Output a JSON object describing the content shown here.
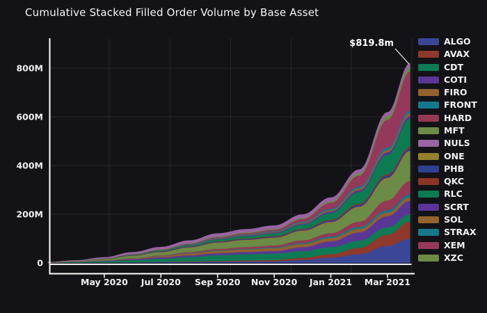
{
  "title": "Cumulative Stacked Filled Order Volume by Base Asset",
  "colors": {
    "background": "#131317",
    "axis_line": "#ffffff",
    "zero_line": "#f0ecf6",
    "grid_horizontal": "#27272e",
    "grid_vertical": "#24242b",
    "tick_text": "#f0f0f0",
    "annotation_text": "#ffffff",
    "annotation_arrow": "#e8e8e8"
  },
  "chart_data": {
    "type": "area",
    "stacked": true,
    "title": "Cumulative Stacked Filled Order Volume by Base Asset",
    "xlabel": "",
    "ylabel": "",
    "ylim": [
      0,
      905
    ],
    "y_ticks": [
      {
        "label": "0",
        "value": 0
      },
      {
        "label": "200M",
        "value": 200
      },
      {
        "label": "400M",
        "value": 400
      },
      {
        "label": "600M",
        "value": 600
      },
      {
        "label": "800M",
        "value": 800
      }
    ],
    "x_ticks": [
      {
        "label": "May 2020",
        "offset": 2
      },
      {
        "label": "Jul 2020",
        "offset": 4
      },
      {
        "label": "Sep 2020",
        "offset": 6
      },
      {
        "label": "Nov 2020",
        "offset": 8
      },
      {
        "label": "Jan 2021",
        "offset": 10
      },
      {
        "label": "Mar 2021",
        "offset": 12
      }
    ],
    "x_offsets": [
      0,
      1,
      2,
      3,
      4,
      5,
      6,
      7,
      8,
      9,
      10,
      11,
      12,
      12.8
    ],
    "legend_position": "right",
    "grid": true,
    "annotation": {
      "text": "$819.8m",
      "value": 819.8
    },
    "stack_order": [
      "ALGO",
      "AVAX",
      "CDT",
      "COTI",
      "FIRO",
      "FRONT",
      "HARD",
      "MFT",
      "ONE",
      "PHB",
      "QKC",
      "RLC",
      "SCRT",
      "SOL",
      "STRAX",
      "XEM",
      "XZC",
      "NULS"
    ],
    "series": [
      {
        "name": "ALGO",
        "color": "#3b4796",
        "values": [
          0.2,
          0.6,
          1.2,
          2,
          3,
          4,
          5,
          6,
          7,
          12,
          22,
          36,
          70,
          100
        ]
      },
      {
        "name": "AVAX",
        "color": "#8e392c",
        "values": [
          0,
          0.1,
          0.3,
          0.6,
          1,
          2,
          3,
          4,
          5,
          9,
          14,
          26,
          46,
          70
        ]
      },
      {
        "name": "CDT",
        "color": "#0e7b55",
        "values": [
          0.8,
          2.5,
          5,
          9,
          13,
          18,
          24,
          26,
          27,
          28,
          29,
          29.5,
          30,
          30
        ]
      },
      {
        "name": "COTI",
        "color": "#5a3795",
        "values": [
          0.3,
          1,
          2,
          4,
          6,
          7,
          8,
          9,
          10,
          16,
          24,
          34,
          46,
          55
        ]
      },
      {
        "name": "FIRO",
        "color": "#93612e",
        "values": [
          0.2,
          0.8,
          1.5,
          3,
          5,
          8,
          10,
          11,
          12,
          13,
          13.5,
          14,
          15,
          15
        ]
      },
      {
        "name": "FRONT",
        "color": "#16778c",
        "values": [
          0,
          0,
          0,
          0.5,
          1,
          1.5,
          2,
          2.5,
          3,
          4,
          6,
          8,
          10,
          12
        ]
      },
      {
        "name": "HARD",
        "color": "#943a55",
        "values": [
          0,
          0,
          0.5,
          1,
          2,
          4,
          6,
          7,
          8,
          11,
          14,
          22,
          40,
          55
        ]
      },
      {
        "name": "MFT",
        "color": "#6b8b46",
        "values": [
          0.5,
          2,
          4,
          8,
          12,
          17,
          23,
          26,
          28,
          35,
          40,
          55,
          85,
          115
        ]
      },
      {
        "name": "NULS",
        "color": "#9a64a4",
        "values": [
          0.3,
          1.5,
          4,
          7,
          9,
          10.5,
          12,
          13,
          13.5,
          14,
          15,
          15.5,
          16,
          16
        ]
      },
      {
        "name": "ONE",
        "color": "#93802f",
        "values": [
          0.2,
          0.5,
          1,
          1.5,
          2,
          2.5,
          3,
          3.5,
          4,
          4.5,
          5.5,
          6.5,
          7.5,
          8
        ]
      },
      {
        "name": "PHB",
        "color": "#2f3f92",
        "values": [
          0.1,
          0.3,
          0.5,
          1,
          1.5,
          2,
          2.5,
          3,
          3.5,
          4,
          5.5,
          7,
          9,
          10
        ]
      },
      {
        "name": "QKC",
        "color": "#8c3526",
        "values": [
          0.1,
          0.2,
          0.4,
          0.7,
          1,
          1.5,
          2,
          2.3,
          2.6,
          3,
          4,
          5,
          6,
          7
        ]
      },
      {
        "name": "RLC",
        "color": "#0c7b52",
        "values": [
          0.1,
          0.3,
          1,
          2,
          3,
          5,
          8,
          10,
          12,
          18,
          28,
          48,
          80,
          115
        ]
      },
      {
        "name": "SCRT",
        "color": "#5a3597",
        "values": [
          0,
          0,
          0,
          0.5,
          1,
          1.5,
          2,
          2.5,
          3,
          4,
          6,
          8,
          10,
          12
        ]
      },
      {
        "name": "SOL",
        "color": "#94632f",
        "values": [
          0,
          0,
          0,
          0.3,
          0.7,
          1,
          1.5,
          2,
          2.5,
          3.5,
          5,
          7,
          9,
          10
        ]
      },
      {
        "name": "STRAX",
        "color": "#19778c",
        "values": [
          0,
          0,
          0.3,
          0.6,
          1,
          1.5,
          2,
          2.5,
          3,
          4,
          6,
          8,
          10,
          12
        ]
      },
      {
        "name": "XEM",
        "color": "#95395c",
        "values": [
          0,
          0.2,
          0.5,
          1,
          1.5,
          2.5,
          4,
          5,
          6,
          12,
          25,
          45,
          115,
          160
        ]
      },
      {
        "name": "XZC",
        "color": "#6b8b46",
        "values": [
          0.2,
          0.5,
          1,
          1.3,
          1.8,
          2.5,
          3,
          3.2,
          3.4,
          4,
          6,
          9,
          14,
          18
        ]
      }
    ]
  }
}
